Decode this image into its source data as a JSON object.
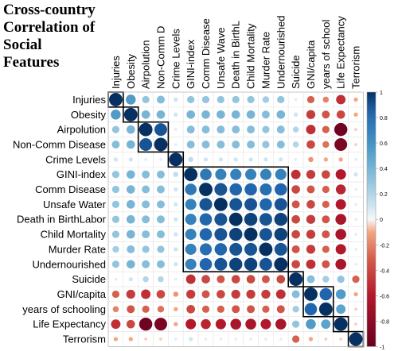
{
  "chart_data": {
    "type": "heatmap",
    "title_lines": [
      "Cross-country",
      "Correlation of",
      "Social",
      "Features"
    ],
    "row_labels": [
      "Injuries",
      "Obesity",
      "Airpolution",
      "Non-Comm Disease",
      "Crime Levels",
      "GINI-index",
      "Comm Disease",
      "Unsafe Water",
      "Death in BirthLabor",
      "Child Mortality",
      "Murder Rate",
      "Undernourished",
      "Suicide",
      "GNI/capita",
      "years of schooling",
      "Life Expectancy",
      "Terrorism"
    ],
    "column_labels": [
      "Injuries",
      "Obesity",
      "Airpolution",
      "Non-Comm D",
      "Crime Levels",
      "GINI-index",
      "Comm Disease",
      "Unsafe Wave",
      "Death in BirthL",
      "Child Mortality",
      "Murder Rate",
      "Undernourished",
      "Suicide",
      "GNI/capita",
      "years of school",
      "Life Expectancy",
      "Terrorism"
    ],
    "colorbar_ticks": [
      "1",
      "0.8",
      "0.6",
      "0.4",
      "0.2",
      "0",
      "-0.2",
      "-0.4",
      "-0.6",
      "-0.8",
      "-1"
    ],
    "color_range": [
      -1,
      1
    ],
    "clusters": [
      [
        0,
        0
      ],
      [
        1,
        1
      ],
      [
        2,
        3
      ],
      [
        4,
        4
      ],
      [
        5,
        11
      ],
      [
        12,
        12
      ],
      [
        13,
        14
      ],
      [
        15,
        15
      ],
      [
        16,
        16
      ]
    ],
    "matrix": [
      [
        1.0,
        0.55,
        0.3,
        0.35,
        0.1,
        0.3,
        0.3,
        0.3,
        0.3,
        0.3,
        0.25,
        0.3,
        0.05,
        -0.3,
        -0.2,
        -0.5,
        -0.1
      ],
      [
        0.55,
        1.0,
        0.4,
        0.4,
        0.1,
        0.4,
        0.4,
        0.4,
        0.4,
        0.4,
        0.35,
        0.4,
        0.1,
        -0.45,
        -0.35,
        -0.4,
        -0.1
      ],
      [
        0.3,
        0.4,
        1.0,
        0.9,
        0.05,
        0.35,
        0.35,
        0.35,
        0.35,
        0.35,
        0.3,
        0.35,
        0.2,
        -0.5,
        -0.3,
        -0.95,
        -0.05
      ],
      [
        0.35,
        0.4,
        0.9,
        1.0,
        0.05,
        0.35,
        0.35,
        0.35,
        0.35,
        0.35,
        0.3,
        0.35,
        0.2,
        -0.4,
        -0.25,
        -0.9,
        -0.05
      ],
      [
        0.1,
        0.1,
        0.05,
        0.05,
        1.0,
        0.15,
        0.1,
        0.1,
        0.1,
        0.1,
        0.1,
        0.1,
        0.05,
        -0.15,
        -0.1,
        -0.1,
        0.05
      ],
      [
        0.3,
        0.4,
        0.35,
        0.35,
        0.15,
        1.0,
        0.75,
        0.7,
        0.7,
        0.7,
        0.7,
        0.7,
        -0.5,
        -0.45,
        -0.4,
        -0.6,
        0.1
      ],
      [
        0.3,
        0.4,
        0.35,
        0.35,
        0.1,
        0.75,
        1.0,
        0.9,
        0.85,
        0.85,
        0.8,
        0.85,
        -0.4,
        -0.35,
        -0.3,
        -0.55,
        0.05
      ],
      [
        0.3,
        0.4,
        0.35,
        0.35,
        0.1,
        0.7,
        0.9,
        1.0,
        0.9,
        0.9,
        0.85,
        0.9,
        -0.35,
        -0.4,
        -0.3,
        -0.6,
        0.05
      ],
      [
        0.3,
        0.4,
        0.35,
        0.35,
        0.1,
        0.7,
        0.85,
        0.9,
        1.0,
        0.95,
        0.9,
        0.95,
        -0.4,
        -0.45,
        -0.35,
        -0.65,
        0.05
      ],
      [
        0.3,
        0.4,
        0.35,
        0.35,
        0.1,
        0.7,
        0.85,
        0.9,
        0.95,
        1.0,
        0.9,
        0.95,
        -0.4,
        -0.45,
        -0.35,
        -0.65,
        0.05
      ],
      [
        0.25,
        0.35,
        0.3,
        0.3,
        0.1,
        0.7,
        0.8,
        0.85,
        0.9,
        0.9,
        1.0,
        0.9,
        -0.35,
        -0.45,
        -0.3,
        -0.6,
        0.05
      ],
      [
        0.3,
        0.4,
        0.35,
        0.35,
        0.1,
        0.7,
        0.85,
        0.9,
        0.95,
        0.95,
        0.9,
        1.0,
        -0.4,
        -0.5,
        -0.35,
        -0.65,
        0.05
      ],
      [
        0.05,
        0.1,
        0.2,
        0.2,
        0.05,
        -0.5,
        -0.4,
        -0.35,
        -0.4,
        -0.4,
        -0.35,
        -0.4,
        1.0,
        0.35,
        0.25,
        0.3,
        -0.3
      ],
      [
        -0.3,
        -0.45,
        -0.5,
        -0.4,
        -0.15,
        -0.45,
        -0.35,
        -0.4,
        -0.45,
        -0.45,
        -0.45,
        -0.5,
        0.35,
        1.0,
        0.85,
        0.55,
        -0.1
      ],
      [
        -0.2,
        -0.35,
        -0.3,
        -0.25,
        -0.1,
        -0.4,
        -0.3,
        -0.3,
        -0.35,
        -0.35,
        -0.3,
        -0.35,
        0.25,
        0.85,
        1.0,
        0.5,
        -0.05
      ],
      [
        -0.5,
        -0.4,
        -0.95,
        -0.9,
        -0.1,
        -0.6,
        -0.55,
        -0.6,
        -0.65,
        -0.65,
        -0.6,
        -0.65,
        0.3,
        0.55,
        0.5,
        1.0,
        -0.05
      ],
      [
        -0.1,
        -0.1,
        -0.05,
        -0.05,
        0.05,
        0.1,
        0.05,
        0.05,
        0.05,
        0.05,
        0.05,
        0.05,
        -0.3,
        -0.1,
        -0.05,
        -0.05,
        1.0
      ]
    ]
  }
}
